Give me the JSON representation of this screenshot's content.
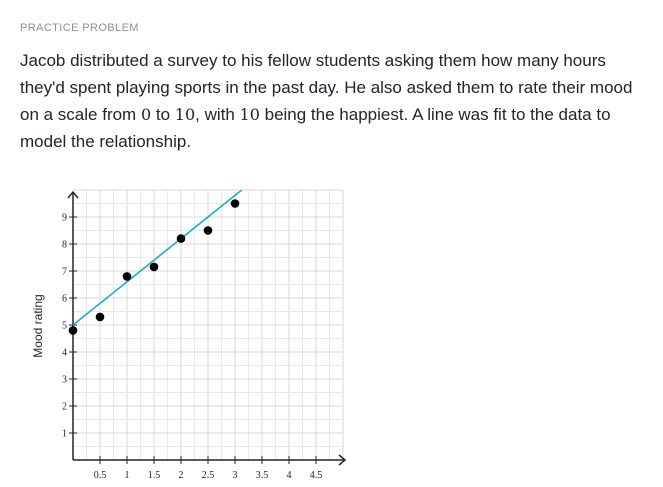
{
  "header": {
    "label": "PRACTICE PROBLEM"
  },
  "problem": {
    "p1": "Jacob distributed a survey to his fellow students asking them how many hours they'd spent playing sports in the past day. He also asked them to rate their mood on a scale from ",
    "n1": "0",
    "p2": " to ",
    "n2": "10",
    "p3": ", with ",
    "n3": "10",
    "p4": " being the happiest. A line was fit to the data to model the relationship."
  },
  "chart_data": {
    "type": "scatter",
    "xlabel": "",
    "ylabel": "Mood rating",
    "xlim": [
      0,
      5
    ],
    "ylim": [
      0,
      10
    ],
    "x_tick_labels": [
      "0.5",
      "1",
      "1.5",
      "2",
      "2.5",
      "3",
      "3.5",
      "4",
      "4.5"
    ],
    "y_tick_labels": [
      "1",
      "2",
      "3",
      "4",
      "5",
      "6",
      "7",
      "8",
      "9"
    ],
    "grid": true,
    "points": [
      {
        "x": 0,
        "y": 4.8
      },
      {
        "x": 0.5,
        "y": 5.3
      },
      {
        "x": 1,
        "y": 6.8
      },
      {
        "x": 1.5,
        "y": 7.15
      },
      {
        "x": 2,
        "y": 8.2
      },
      {
        "x": 2.5,
        "y": 8.5
      },
      {
        "x": 3,
        "y": 9.5
      }
    ],
    "fit_line": {
      "intercept": 5,
      "slope": 1.6,
      "color": "#1cabc4"
    },
    "point_color": "#000000"
  }
}
